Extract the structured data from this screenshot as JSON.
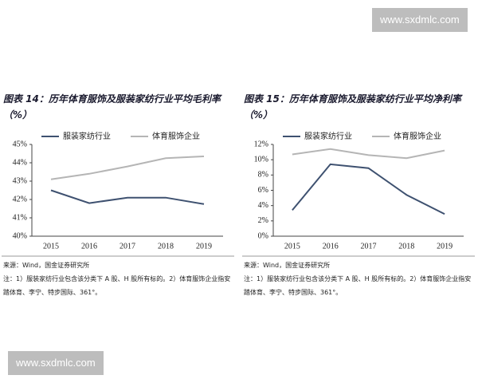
{
  "watermarks": [
    "www.sxdmlc.com",
    "www.sxdmlc.com"
  ],
  "chart_data": [
    {
      "type": "line",
      "title": "图表 14：历年体育服饰及服装家纺行业平均毛利率（%）",
      "categories": [
        "2015",
        "2016",
        "2017",
        "2018",
        "2019"
      ],
      "series": [
        {
          "name": "服装家纺行业",
          "color": "#3e5170",
          "values": [
            42.5,
            41.8,
            42.1,
            42.1,
            41.75
          ]
        },
        {
          "name": "体育服饰企业",
          "color": "#b5b5b5",
          "values": [
            43.1,
            43.4,
            43.8,
            44.25,
            44.35
          ]
        }
      ],
      "ylim": [
        40,
        45
      ],
      "yticks": [
        {
          "value": 40,
          "label": "40%"
        },
        {
          "value": 41,
          "label": "41%"
        },
        {
          "value": 42,
          "label": "42%"
        },
        {
          "value": 43,
          "label": "43%"
        },
        {
          "value": 44,
          "label": "44%"
        },
        {
          "value": 45,
          "label": "45%"
        }
      ],
      "grid": false,
      "source": "来源：Wind，国金证券研究所",
      "note": "注：1）服装家纺行业包含该分类下 A 股、H 股所有标的。2）体育服饰企业指安踏体育、李宁、特步国际、361°。"
    },
    {
      "type": "line",
      "title": "图表 15：历年体育服饰及服装家纺行业平均净利率（%）",
      "categories": [
        "2015",
        "2016",
        "2017",
        "2018",
        "2019"
      ],
      "series": [
        {
          "name": "服装家纺行业",
          "color": "#3e5170",
          "values": [
            3.4,
            9.4,
            8.9,
            5.4,
            2.9
          ]
        },
        {
          "name": "体育服饰企业",
          "color": "#b5b5b5",
          "values": [
            10.7,
            11.4,
            10.6,
            10.2,
            11.2
          ]
        }
      ],
      "ylim": [
        0,
        12
      ],
      "yticks": [
        {
          "value": 0,
          "label": "0%"
        },
        {
          "value": 2,
          "label": "2%"
        },
        {
          "value": 4,
          "label": "4%"
        },
        {
          "value": 6,
          "label": "6%"
        },
        {
          "value": 8,
          "label": "8%"
        },
        {
          "value": 10,
          "label": "10%"
        },
        {
          "value": 12,
          "label": "12%"
        }
      ],
      "grid": false,
      "source": "来源：Wind，国金证券研究所",
      "note": "注：1）服装家纺行业包含该分类下 A 股、H 股所有标的。2）体育服饰企业指安踏体育、李宁、特步国际、361°。"
    }
  ]
}
